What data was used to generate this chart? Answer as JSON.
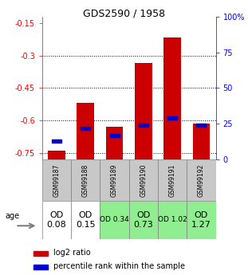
{
  "title": "GDS2590 / 1958",
  "samples": [
    "GSM99187",
    "GSM99188",
    "GSM99189",
    "GSM99190",
    "GSM99191",
    "GSM99192"
  ],
  "log2_ratios": [
    -0.74,
    -0.52,
    -0.63,
    -0.335,
    -0.215,
    -0.615
  ],
  "percentile_ranks": [
    13,
    22,
    17,
    24,
    29,
    24
  ],
  "od_labels": [
    "OD\n0.08",
    "OD\n0.15",
    "OD 0.34",
    "OD\n0.73",
    "OD 1.02",
    "OD\n1.27"
  ],
  "od_bg_colors": [
    "#ffffff",
    "#ffffff",
    "#90ee90",
    "#90ee90",
    "#90ee90",
    "#90ee90"
  ],
  "od_font_sizes": [
    8,
    8,
    6.5,
    8,
    6.5,
    8
  ],
  "ylim_left": [
    -0.78,
    -0.12
  ],
  "ylim_right": [
    0,
    100
  ],
  "yticks_left": [
    -0.75,
    -0.6,
    -0.45,
    -0.3,
    -0.15
  ],
  "yticks_right": [
    0,
    25,
    50,
    75,
    100
  ],
  "bar_color": "#cc0000",
  "percentile_color": "#0000cc",
  "bar_width": 0.6,
  "grid_color": "black",
  "bg_color_sample": "#c8c8c8"
}
